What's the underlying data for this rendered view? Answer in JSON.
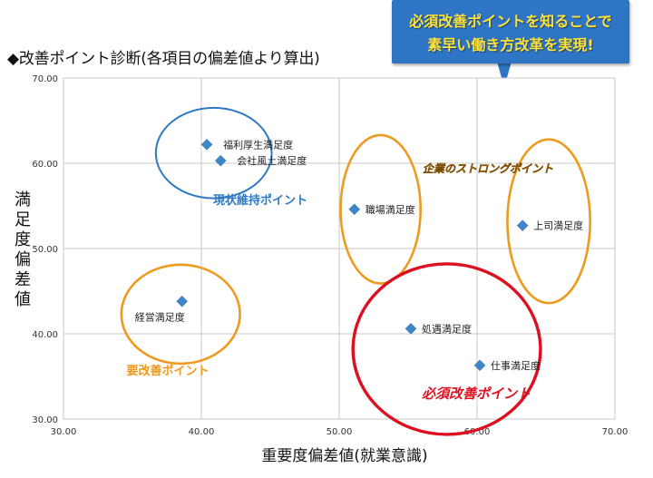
{
  "page": {
    "title": "◆改善ポイント診断(各項目の偏差値より算出)",
    "callout_line1": "必須改善ポイントを知ることで",
    "callout_line2": "素早い働き方改革を実現!"
  },
  "colors": {
    "marker": "#3f86c8",
    "grid": "#c8c8c8",
    "blue_group": "#2e79c2",
    "orange_group": "#ee9a1e",
    "red_group": "#dd1020",
    "callout_bg": "#2e75c5",
    "callout_text": "#ffe23a"
  },
  "chart_data": {
    "type": "scatter",
    "title": "",
    "xlabel": "重要度偏差値(就業意識)",
    "ylabel": "満足度偏差値",
    "xlim": [
      30,
      70
    ],
    "ylim": [
      30,
      70
    ],
    "x_ticks": [
      "30.00",
      "40.00",
      "50.00",
      "60.00",
      "70.00"
    ],
    "y_ticks": [
      "30.00",
      "40.00",
      "50.00",
      "60.00",
      "70.00"
    ],
    "grid": true,
    "series": [
      {
        "points": [
          {
            "label": "福利厚生満足度",
            "x": 40.4,
            "y": 62.2
          },
          {
            "label": "会社風土満足度",
            "x": 41.4,
            "y": 60.3
          },
          {
            "label": "職場満足度",
            "x": 51.1,
            "y": 54.6
          },
          {
            "label": "上司満足度",
            "x": 63.3,
            "y": 52.7
          },
          {
            "label": "経営満足度",
            "x": 38.6,
            "y": 43.8
          },
          {
            "label": "処遇満足度",
            "x": 55.2,
            "y": 40.6
          },
          {
            "label": "仕事満足度",
            "x": 60.2,
            "y": 36.3
          }
        ]
      }
    ],
    "annotations": [
      {
        "text": "現状維持ポイント",
        "group": "blue"
      },
      {
        "text": "企業のストロングポイント",
        "group": "orange"
      },
      {
        "text": "要改善ポイント",
        "group": "orange"
      },
      {
        "text": "必須改善ポイント",
        "group": "red"
      }
    ]
  }
}
